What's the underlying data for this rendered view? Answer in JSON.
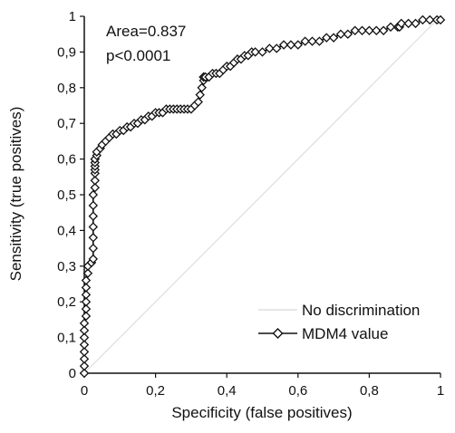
{
  "chart_data": {
    "type": "line",
    "title": "",
    "xlabel": "Specificity (false positives)",
    "ylabel": "Sensitivity (true positives)",
    "xlim": [
      0,
      1
    ],
    "ylim": [
      0,
      1
    ],
    "x_ticks": [
      {
        "value": 0,
        "label": "0"
      },
      {
        "value": 0.2,
        "label": "0,2"
      },
      {
        "value": 0.4,
        "label": "0,4"
      },
      {
        "value": 0.6,
        "label": "0,6"
      },
      {
        "value": 0.8,
        "label": "0,8"
      },
      {
        "value": 1,
        "label": "1"
      }
    ],
    "y_ticks": [
      {
        "value": 0,
        "label": "0"
      },
      {
        "value": 0.1,
        "label": "0,1"
      },
      {
        "value": 0.2,
        "label": "0,2"
      },
      {
        "value": 0.3,
        "label": "0,3"
      },
      {
        "value": 0.4,
        "label": "0,4"
      },
      {
        "value": 0.5,
        "label": "0,5"
      },
      {
        "value": 0.6,
        "label": "0,6"
      },
      {
        "value": 0.7,
        "label": "0,7"
      },
      {
        "value": 0.8,
        "label": "0,8"
      },
      {
        "value": 0.9,
        "label": "0,9"
      },
      {
        "value": 1,
        "label": "1"
      }
    ],
    "grid": false,
    "legend_position": "bottom-right",
    "annotations": [
      "Area=0.837",
      "p<0.0001"
    ],
    "series": [
      {
        "name": "No discrimination",
        "style": "line",
        "color": "#dddddd",
        "x": [
          0,
          1
        ],
        "y": [
          0,
          1
        ]
      },
      {
        "name": "MDM4 value",
        "style": "line-diamond",
        "color": "#111111",
        "x": [
          0,
          0,
          0,
          0,
          0,
          0,
          0,
          0,
          0.005,
          0.005,
          0.005,
          0.005,
          0.005,
          0.005,
          0.01,
          0.01,
          0.02,
          0.02,
          0.025,
          0.025,
          0.025,
          0.025,
          0.025,
          0.025,
          0.025,
          0.03,
          0.03,
          0.03,
          0.03,
          0.03,
          0.03,
          0.03,
          0.03,
          0.035,
          0.035,
          0.045,
          0.05,
          0.06,
          0.07,
          0.08,
          0.09,
          0.1,
          0.11,
          0.12,
          0.13,
          0.14,
          0.15,
          0.16,
          0.17,
          0.18,
          0.19,
          0.2,
          0.21,
          0.22,
          0.23,
          0.24,
          0.25,
          0.26,
          0.27,
          0.28,
          0.29,
          0.3,
          0.31,
          0.32,
          0.325,
          0.33,
          0.335,
          0.335,
          0.335,
          0.335,
          0.34,
          0.35,
          0.36,
          0.37,
          0.38,
          0.39,
          0.4,
          0.41,
          0.42,
          0.43,
          0.44,
          0.45,
          0.46,
          0.47,
          0.48,
          0.5,
          0.52,
          0.54,
          0.56,
          0.58,
          0.6,
          0.62,
          0.64,
          0.66,
          0.68,
          0.7,
          0.72,
          0.74,
          0.76,
          0.78,
          0.8,
          0.82,
          0.84,
          0.86,
          0.88,
          0.885,
          0.89,
          0.91,
          0.93,
          0.95,
          0.97,
          0.99,
          1
        ],
        "y": [
          0,
          0.02,
          0.04,
          0.06,
          0.08,
          0.1,
          0.12,
          0.14,
          0.16,
          0.18,
          0.2,
          0.22,
          0.24,
          0.26,
          0.28,
          0.3,
          0.31,
          0.31,
          0.32,
          0.35,
          0.38,
          0.41,
          0.44,
          0.47,
          0.5,
          0.52,
          0.54,
          0.56,
          0.57,
          0.58,
          0.59,
          0.6,
          0.6,
          0.61,
          0.62,
          0.63,
          0.64,
          0.65,
          0.66,
          0.67,
          0.67,
          0.68,
          0.68,
          0.69,
          0.69,
          0.7,
          0.7,
          0.71,
          0.71,
          0.72,
          0.72,
          0.73,
          0.73,
          0.73,
          0.74,
          0.74,
          0.74,
          0.74,
          0.74,
          0.74,
          0.74,
          0.74,
          0.75,
          0.76,
          0.78,
          0.8,
          0.82,
          0.83,
          0.83,
          0.83,
          0.83,
          0.83,
          0.84,
          0.84,
          0.84,
          0.85,
          0.86,
          0.86,
          0.87,
          0.88,
          0.88,
          0.89,
          0.89,
          0.9,
          0.9,
          0.9,
          0.91,
          0.91,
          0.92,
          0.92,
          0.92,
          0.93,
          0.93,
          0.93,
          0.94,
          0.94,
          0.95,
          0.95,
          0.96,
          0.96,
          0.96,
          0.96,
          0.96,
          0.97,
          0.97,
          0.97,
          0.98,
          0.98,
          0.98,
          0.99,
          0.99,
          0.99,
          0.99
        ]
      }
    ]
  }
}
